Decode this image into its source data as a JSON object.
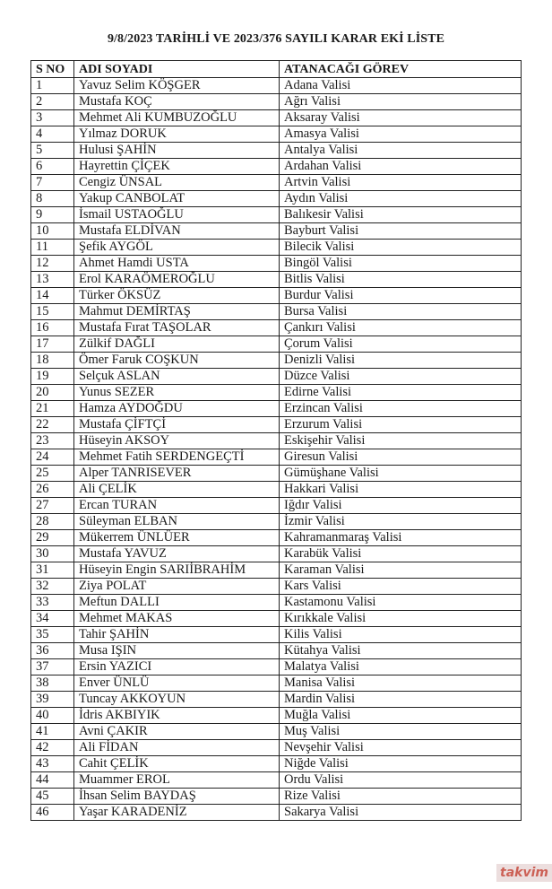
{
  "title": "9/8/2023 TARİHLİ VE 2023/376 SAYILI KARAR EKİ LİSTE",
  "headers": [
    "S NO",
    "ADI SOYADI",
    "ATANACAĞI GÖREV"
  ],
  "rows": [
    [
      "1",
      "Yavuz Selim KÖŞGER",
      "Adana Valisi"
    ],
    [
      "2",
      "Mustafa KOÇ",
      "Ağrı Valisi"
    ],
    [
      "3",
      "Mehmet Ali KUMBUZOĞLU",
      "Aksaray Valisi"
    ],
    [
      "4",
      "Yılmaz DORUK",
      "Amasya Valisi"
    ],
    [
      "5",
      "Hulusi ŞAHİN",
      "Antalya Valisi"
    ],
    [
      "6",
      "Hayrettin ÇİÇEK",
      "Ardahan Valisi"
    ],
    [
      "7",
      "Cengiz ÜNSAL",
      "Artvin Valisi"
    ],
    [
      "8",
      "Yakup CANBOLAT",
      "Aydın Valisi"
    ],
    [
      "9",
      "İsmail USTAOĞLU",
      "Balıkesir Valisi"
    ],
    [
      "10",
      "Mustafa ELDİVAN",
      "Bayburt Valisi"
    ],
    [
      "11",
      "Şefik AYGÖL",
      "Bilecik Valisi"
    ],
    [
      "12",
      "Ahmet Hamdi USTA",
      "Bingöl Valisi"
    ],
    [
      "13",
      "Erol KARAÖMEROĞLU",
      "Bitlis Valisi"
    ],
    [
      "14",
      "Türker ÖKSÜZ",
      "Burdur Valisi"
    ],
    [
      "15",
      "Mahmut DEMİRTAŞ",
      "Bursa Valisi"
    ],
    [
      "16",
      "Mustafa Fırat TAŞOLAR",
      "Çankırı Valisi"
    ],
    [
      "17",
      "Zülkif DAĞLI",
      "Çorum Valisi"
    ],
    [
      "18",
      "Ömer Faruk COŞKUN",
      "Denizli Valisi"
    ],
    [
      "19",
      "Selçuk ASLAN",
      "Düzce Valisi"
    ],
    [
      "20",
      "Yunus SEZER",
      "Edirne Valisi"
    ],
    [
      "21",
      "Hamza AYDOĞDU",
      "Erzincan Valisi"
    ],
    [
      "22",
      "Mustafa ÇİFTÇİ",
      "Erzurum Valisi"
    ],
    [
      "23",
      "Hüseyin AKSOY",
      "Eskişehir Valisi"
    ],
    [
      "24",
      "Mehmet Fatih SERDENGEÇTİ",
      "Giresun Valisi"
    ],
    [
      "25",
      "Alper TANRISEVER",
      "Gümüşhane Valisi"
    ],
    [
      "26",
      "Ali ÇELİK",
      "Hakkari Valisi"
    ],
    [
      "27",
      "Ercan TURAN",
      "Iğdır Valisi"
    ],
    [
      "28",
      "Süleyman ELBAN",
      "İzmir Valisi"
    ],
    [
      "29",
      "Mükerrem ÜNLÜER",
      "Kahramanmaraş Valisi"
    ],
    [
      "30",
      "Mustafa YAVUZ",
      "Karabük Valisi"
    ],
    [
      "31",
      "Hüseyin Engin SARIİBRAHİM",
      "Karaman Valisi"
    ],
    [
      "32",
      "Ziya POLAT",
      "Kars Valisi"
    ],
    [
      "33",
      "Meftun DALLI",
      "Kastamonu Valisi"
    ],
    [
      "34",
      "Mehmet MAKAS",
      "Kırıkkale Valisi"
    ],
    [
      "35",
      "Tahir ŞAHİN",
      "Kilis Valisi"
    ],
    [
      "36",
      "Musa IŞIN",
      "Kütahya Valisi"
    ],
    [
      "37",
      "Ersin YAZICI",
      "Malatya Valisi"
    ],
    [
      "38",
      "Enver ÜNLÜ",
      "Manisa Valisi"
    ],
    [
      "39",
      "Tuncay AKKOYUN",
      "Mardin Valisi"
    ],
    [
      "40",
      "İdris AKBIYIK",
      "Muğla Valisi"
    ],
    [
      "41",
      "Avni ÇAKIR",
      "Muş Valisi"
    ],
    [
      "42",
      "Ali FİDAN",
      "Nevşehir Valisi"
    ],
    [
      "43",
      "Cahit ÇELİK",
      "Niğde Valisi"
    ],
    [
      "44",
      "Muammer EROL",
      "Ordu Valisi"
    ],
    [
      "45",
      "İhsan Selim BAYDAŞ",
      "Rize Valisi"
    ],
    [
      "46",
      "Yaşar KARADENİZ",
      "Sakarya Valisi"
    ]
  ],
  "watermark": "takvim"
}
